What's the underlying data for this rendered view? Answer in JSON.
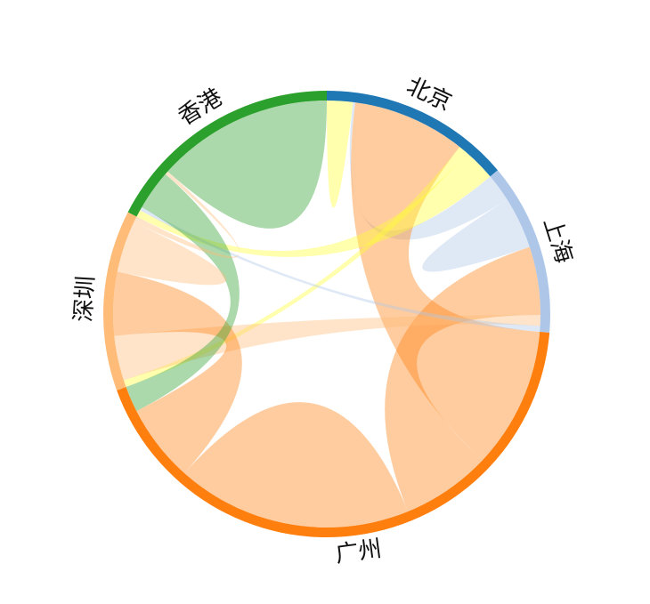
{
  "chart_data": {
    "type": "chord",
    "groups": [
      {
        "name": "北京",
        "color": "#1f77b4",
        "ribbon_color": "#ffff33"
      },
      {
        "name": "上海",
        "color": "#aec7e8",
        "ribbon_color": "#aec7e8"
      },
      {
        "name": "广州",
        "color": "#ff7f0e",
        "ribbon_color": "#ff7f0e"
      },
      {
        "name": "深圳",
        "color": "#ffbb78",
        "ribbon_color": "#ffbb78"
      },
      {
        "name": "香港",
        "color": "#2ca02c",
        "ribbon_color": "#2ca02c"
      }
    ],
    "matrix": [
      [
        110,
        10,
        480,
        38,
        140
      ],
      [
        120,
        220,
        290,
        45,
        25
      ],
      [
        600,
        380,
        1000,
        330,
        110
      ],
      [
        30,
        190,
        270,
        220,
        25
      ],
      [
        30,
        15,
        170,
        15,
        750
      ]
    ]
  }
}
